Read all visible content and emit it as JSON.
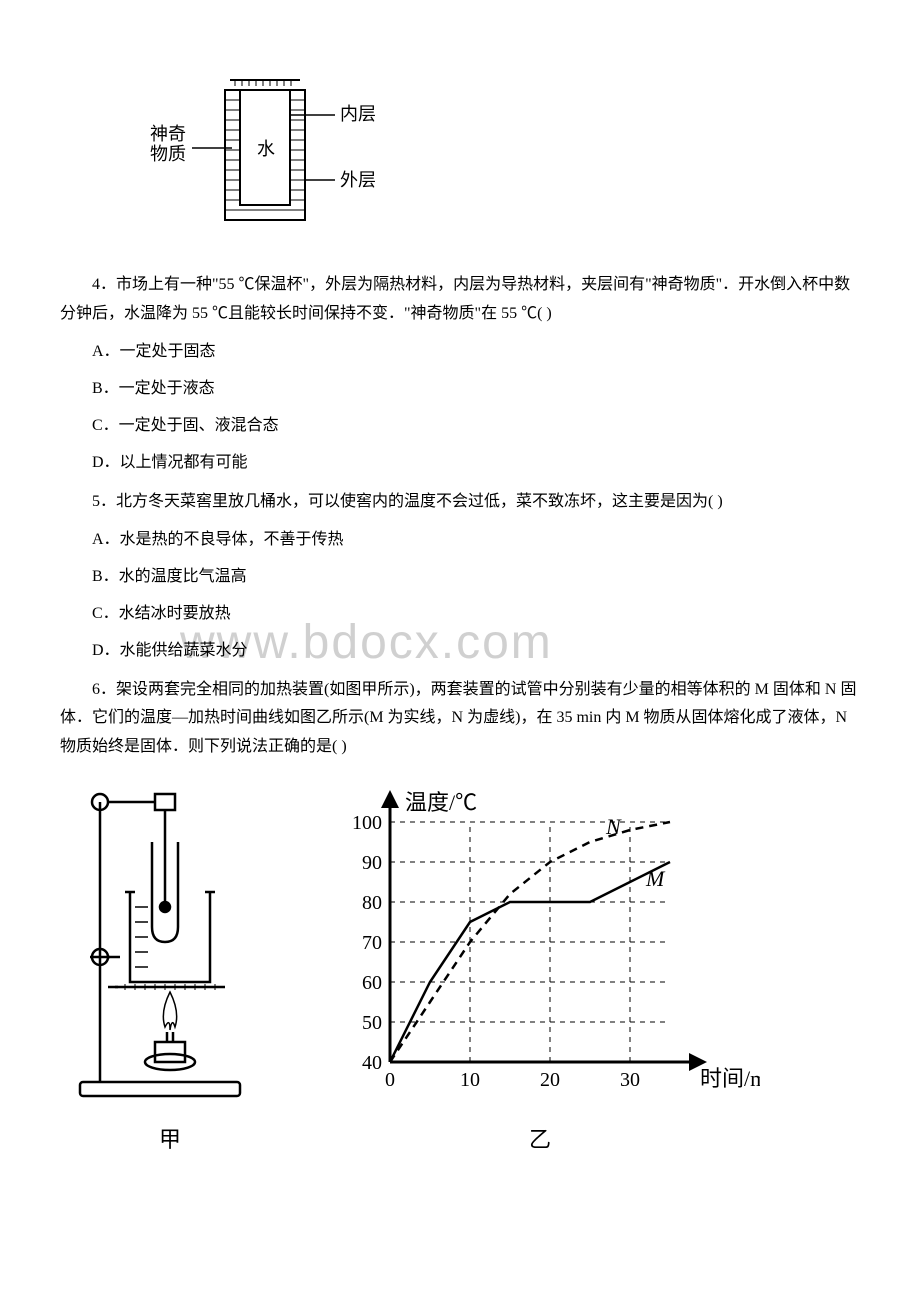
{
  "watermark": "www.bdocx.com",
  "cup_diagram": {
    "label_left_top": "神奇",
    "label_left_bottom": "物质",
    "label_water": "水",
    "label_inner": "内层",
    "label_outer": "外层",
    "stroke": "#000000",
    "fill": "#ffffff"
  },
  "q4": {
    "text": "4．市场上有一种\"55 ℃保温杯\"，外层为隔热材料，内层为导热材料，夹层间有\"神奇物质\"．开水倒入杯中数分钟后，水温降为 55 ℃且能较长时间保持不变．\"神奇物质\"在 55 ℃(  )",
    "A": "A．一定处于固态",
    "B": "B．一定处于液态",
    "C": "C．一定处于固、液混合态",
    "D": "D．以上情况都有可能"
  },
  "q5": {
    "text": "5．北方冬天菜窖里放几桶水，可以使窖内的温度不会过低，菜不致冻坏，这主要是因为(  )",
    "A": "A．水是热的不良导体，不善于传热",
    "B": "B．水的温度比气温高",
    "C": "C．水结冰时要放热",
    "D": "D．水能供给蔬菜水分"
  },
  "q6": {
    "text": "6．架设两套完全相同的加热装置(如图甲所示)，两套装置的试管中分别装有少量的相等体积的 M 固体和 N 固体．它们的温度—加热时间曲线如图乙所示(M 为实线，N 为虚线)，在 35 min 内 M 物质从固体熔化成了液体，N 物质始终是固体．则下列说法正确的是(  )"
  },
  "chart": {
    "y_label": "温度/℃",
    "x_label": "时间/min",
    "y_ticks": [
      40,
      50,
      60,
      70,
      80,
      90,
      100
    ],
    "x_ticks": [
      0,
      10,
      20,
      30
    ],
    "series_M": {
      "label": "M",
      "style": "solid",
      "points": [
        [
          0,
          40
        ],
        [
          5,
          60
        ],
        [
          10,
          75
        ],
        [
          15,
          80
        ],
        [
          20,
          80
        ],
        [
          25,
          80
        ],
        [
          30,
          85
        ],
        [
          35,
          90
        ]
      ]
    },
    "series_N": {
      "label": "N",
      "style": "dashed",
      "points": [
        [
          0,
          40
        ],
        [
          5,
          55
        ],
        [
          10,
          70
        ],
        [
          15,
          82
        ],
        [
          20,
          90
        ],
        [
          25,
          95
        ],
        [
          30,
          98
        ],
        [
          35,
          100
        ]
      ]
    },
    "axis_color": "#000000",
    "grid_style": "dashed",
    "font_size_axis": 20,
    "font_size_label": 22
  },
  "fig_labels": {
    "jia": "甲",
    "yi": "乙"
  }
}
